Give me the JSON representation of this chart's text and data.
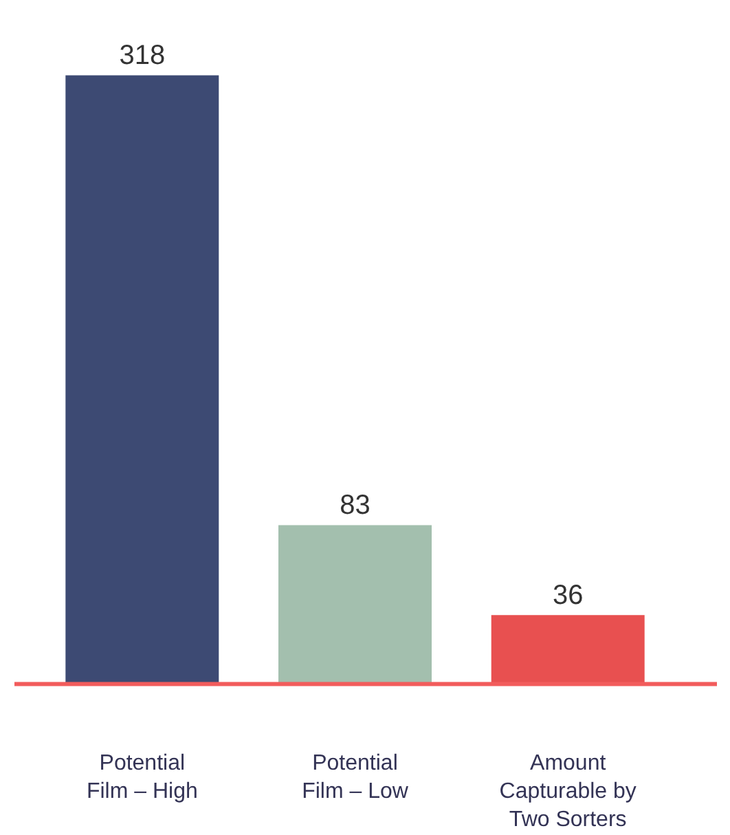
{
  "chart_data": {
    "type": "bar",
    "categories": [
      "Potential Film – High",
      "Potential Film – Low",
      "Amount Capturable by Two Sorters"
    ],
    "values": [
      318,
      83,
      36
    ],
    "colors": [
      "#3d4a73",
      "#a3bfae",
      "#e85050"
    ],
    "data_labels": true,
    "ref_lines": [
      {
        "axis": "y",
        "value": 0,
        "color": "#f25c5c"
      }
    ]
  }
}
